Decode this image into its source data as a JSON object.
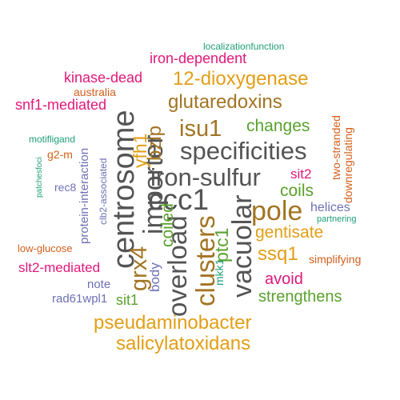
{
  "colors": {
    "gray": "#545454",
    "orange": "#E29E16",
    "brown": "#A27422",
    "green": "#59A12D",
    "pink": "#E0187B",
    "purple": "#6E70B5",
    "rust": "#D45F1A",
    "teal": "#1F9E77"
  },
  "words": {
    "localizationfunction": "localizationfunction",
    "iron_dependent": "iron-dependent",
    "dioxygenase": "12-dioxygenase",
    "kinase_dead": "kinase-dead",
    "australia": "australia",
    "snf1_mediated": "snf1-mediated",
    "glutaredoxins": "glutaredoxins",
    "changes": "changes",
    "isu1": "isu1",
    "specificities": "specificities",
    "iron_sulfur": "iron-sulfur",
    "ccc1": "ccc1",
    "pole": "pole",
    "sit2": "sit2",
    "coils": "coils",
    "helices": "helices",
    "partnering": "partnering",
    "gentisate": "gentisate",
    "ssq1": "ssq1",
    "simplifying": "simplifying",
    "low_glucose": "low-glucose",
    "slt2_mediated": "slt2-mediated",
    "avoid": "avoid",
    "note": "note",
    "strengthens": "strengthens",
    "sit1": "sit1",
    "rad61wpl1": "rad61wpl1",
    "pseudaminobacter": "pseudaminobacter",
    "salicylatoxidans": "salicylatoxidans",
    "motifligand": "motifligand",
    "g2_m": "g2-m",
    "rec8": "rec8",
    "centrosome": "centrosome",
    "grx4": "grx4",
    "importer": "importer",
    "yfh1": "yfh1",
    "bzip": "bzip",
    "overload": "overload",
    "clusters": "clusters",
    "vacuolar": "vacuolar",
    "ptc1": "ptc1",
    "mkk1": "mkk1",
    "coiled": "coiled",
    "body": "body",
    "protein_interaction": "protein-interaction",
    "clb2_associated": "clb2-associated",
    "patchesfoci": "patchesfoci",
    "two_stranded": "two-stranded",
    "downregulating": "downregulating"
  }
}
